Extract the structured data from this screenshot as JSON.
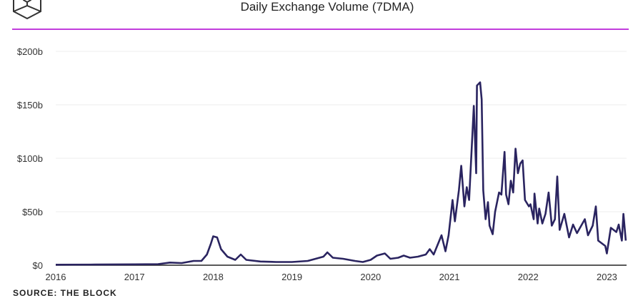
{
  "chart_data": {
    "type": "line",
    "title": "Daily Exchange Volume (7DMA)",
    "xlabel": "",
    "ylabel": "",
    "xlim": [
      2016,
      2023.25
    ],
    "ylim": [
      0,
      200
    ],
    "x_ticks": [
      2016,
      2017,
      2018,
      2019,
      2020,
      2021,
      2022,
      2023
    ],
    "x_tick_labels": [
      "2016",
      "2017",
      "2018",
      "2019",
      "2020",
      "2021",
      "2022",
      "2023"
    ],
    "y_ticks": [
      0,
      50,
      100,
      150,
      200
    ],
    "y_tick_labels": [
      "$0",
      "$50b",
      "$100b",
      "$150b",
      "$200b"
    ],
    "grid": true,
    "line_color": "#2a2460",
    "series": [
      {
        "name": "Daily Exchange Volume (7DMA)",
        "unit": "billions USD",
        "points": [
          [
            2016.0,
            0.5
          ],
          [
            2016.5,
            0.6
          ],
          [
            2017.0,
            0.8
          ],
          [
            2017.3,
            1
          ],
          [
            2017.45,
            2.5
          ],
          [
            2017.6,
            2
          ],
          [
            2017.75,
            4
          ],
          [
            2017.85,
            4
          ],
          [
            2017.92,
            10
          ],
          [
            2017.97,
            20
          ],
          [
            2018.0,
            27
          ],
          [
            2018.05,
            26
          ],
          [
            2018.1,
            15
          ],
          [
            2018.18,
            8
          ],
          [
            2018.28,
            5
          ],
          [
            2018.35,
            10
          ],
          [
            2018.42,
            5
          ],
          [
            2018.6,
            3.5
          ],
          [
            2018.8,
            3
          ],
          [
            2019.0,
            3
          ],
          [
            2019.2,
            4
          ],
          [
            2019.3,
            6
          ],
          [
            2019.4,
            8
          ],
          [
            2019.45,
            12
          ],
          [
            2019.52,
            7
          ],
          [
            2019.65,
            6
          ],
          [
            2019.8,
            4
          ],
          [
            2019.9,
            3
          ],
          [
            2020.0,
            5
          ],
          [
            2020.08,
            9
          ],
          [
            2020.18,
            11
          ],
          [
            2020.25,
            6
          ],
          [
            2020.35,
            7
          ],
          [
            2020.42,
            9
          ],
          [
            2020.5,
            7
          ],
          [
            2020.6,
            8
          ],
          [
            2020.7,
            10
          ],
          [
            2020.75,
            15
          ],
          [
            2020.8,
            10
          ],
          [
            2020.9,
            28
          ],
          [
            2020.95,
            13
          ],
          [
            2020.99,
            28
          ],
          [
            2021.04,
            61
          ],
          [
            2021.07,
            41
          ],
          [
            2021.12,
            70
          ],
          [
            2021.15,
            93
          ],
          [
            2021.19,
            55
          ],
          [
            2021.22,
            73
          ],
          [
            2021.25,
            61
          ],
          [
            2021.27,
            90
          ],
          [
            2021.31,
            149
          ],
          [
            2021.34,
            86
          ],
          [
            2021.35,
            168
          ],
          [
            2021.39,
            171
          ],
          [
            2021.41,
            155
          ],
          [
            2021.43,
            70
          ],
          [
            2021.46,
            43
          ],
          [
            2021.49,
            59
          ],
          [
            2021.51,
            37
          ],
          [
            2021.55,
            29
          ],
          [
            2021.58,
            50
          ],
          [
            2021.63,
            68
          ],
          [
            2021.66,
            66
          ],
          [
            2021.7,
            106
          ],
          [
            2021.72,
            66
          ],
          [
            2021.75,
            57
          ],
          [
            2021.78,
            79
          ],
          [
            2021.81,
            68
          ],
          [
            2021.84,
            109
          ],
          [
            2021.87,
            86
          ],
          [
            2021.9,
            95
          ],
          [
            2021.93,
            98
          ],
          [
            2021.96,
            61
          ],
          [
            2022.01,
            55
          ],
          [
            2022.03,
            57
          ],
          [
            2022.07,
            43
          ],
          [
            2022.08,
            67
          ],
          [
            2022.12,
            39
          ],
          [
            2022.14,
            53
          ],
          [
            2022.18,
            39
          ],
          [
            2022.22,
            48
          ],
          [
            2022.26,
            68
          ],
          [
            2022.3,
            37
          ],
          [
            2022.34,
            43
          ],
          [
            2022.37,
            83
          ],
          [
            2022.4,
            33
          ],
          [
            2022.46,
            48
          ],
          [
            2022.52,
            26
          ],
          [
            2022.57,
            38
          ],
          [
            2022.62,
            30
          ],
          [
            2022.72,
            43
          ],
          [
            2022.76,
            28
          ],
          [
            2022.82,
            37
          ],
          [
            2022.86,
            55
          ],
          [
            2022.89,
            23
          ],
          [
            2022.98,
            18
          ],
          [
            2023.0,
            11
          ],
          [
            2023.05,
            35
          ],
          [
            2023.12,
            31
          ],
          [
            2023.15,
            38
          ],
          [
            2023.19,
            23
          ],
          [
            2023.21,
            48
          ],
          [
            2023.24,
            23
          ]
        ]
      }
    ],
    "source": "SOURCE: THE BLOCK"
  }
}
